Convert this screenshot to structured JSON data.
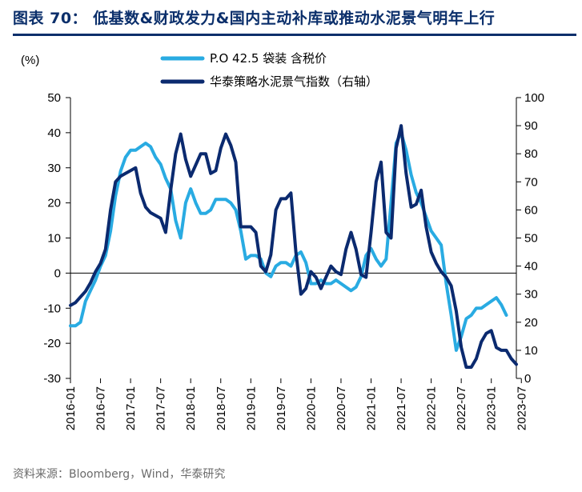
{
  "header": {
    "title": "图表 70：  低基数&财政发力&国内主动补库或推动水泥景气明年上行"
  },
  "footer": {
    "source": "资料来源：Bloomberg，Wind，华泰研究"
  },
  "colors": {
    "series1": "#29abe2",
    "series2": "#0b2a6f",
    "axis": "#000000",
    "title": "#0b2f6b"
  },
  "chart_data": {
    "type": "line",
    "unit_label": "(%)",
    "x_tick_labels": [
      "2016-01",
      "2016-07",
      "2017-01",
      "2017-07",
      "2018-01",
      "2018-07",
      "2019-01",
      "2019-07",
      "2020-01",
      "2020-07",
      "2021-01",
      "2021-07",
      "2022-01",
      "2022-07",
      "2023-01",
      "2023-07"
    ],
    "x_start": "2016-01",
    "left_axis": {
      "ylim": [
        -30,
        50
      ],
      "ticks": [
        -30,
        -20,
        -10,
        0,
        10,
        20,
        30,
        40,
        50
      ]
    },
    "right_axis": {
      "ylim": [
        0,
        100
      ],
      "ticks": [
        0,
        10,
        20,
        30,
        40,
        50,
        60,
        70,
        80,
        90,
        100
      ]
    },
    "legend_position": "top",
    "series": [
      {
        "name": "P.O 42.5 袋装 含税价",
        "axis": "left",
        "values": [
          -15,
          -15,
          -14,
          -8,
          -5,
          -2,
          2,
          5,
          12,
          22,
          29,
          33,
          35,
          35,
          36,
          37,
          36,
          33,
          31,
          27,
          24,
          15,
          10,
          20,
          24,
          20,
          17,
          17,
          18,
          21,
          21,
          21,
          20,
          18,
          12,
          4,
          5,
          5,
          4,
          0,
          -1,
          2,
          3,
          3,
          2,
          5,
          6,
          3,
          -3,
          -3,
          -2,
          -3,
          -3,
          -2,
          -3,
          -4,
          -5,
          -4,
          -1,
          5,
          7,
          4,
          2,
          4,
          20,
          37,
          40,
          35,
          28,
          23,
          20,
          16,
          12,
          10,
          8,
          -3,
          -12,
          -22,
          -18,
          -13,
          -12,
          -10,
          -10,
          -9,
          -8,
          -7,
          -9,
          -12
        ]
      },
      {
        "name": "华泰策略水泥景气指数（右轴）",
        "axis": "right",
        "values": [
          26,
          27,
          29,
          31,
          34,
          38,
          41,
          46,
          60,
          70,
          72,
          73,
          74,
          75,
          66,
          61,
          59,
          58,
          57,
          52,
          67,
          80,
          87,
          78,
          72,
          76,
          80,
          80,
          73,
          74,
          82,
          87,
          83,
          77,
          54,
          54,
          54,
          52,
          40,
          38,
          44,
          60,
          64,
          64,
          66,
          45,
          30,
          32,
          38,
          36,
          32,
          36,
          40,
          38,
          37,
          46,
          52,
          46,
          37,
          36,
          52,
          70,
          77,
          52,
          50,
          82,
          90,
          73,
          61,
          62,
          67,
          54,
          45,
          41,
          38,
          36,
          33,
          24,
          11,
          4,
          4,
          7,
          13,
          16,
          17,
          11,
          10,
          10,
          7,
          5
        ]
      }
    ]
  }
}
